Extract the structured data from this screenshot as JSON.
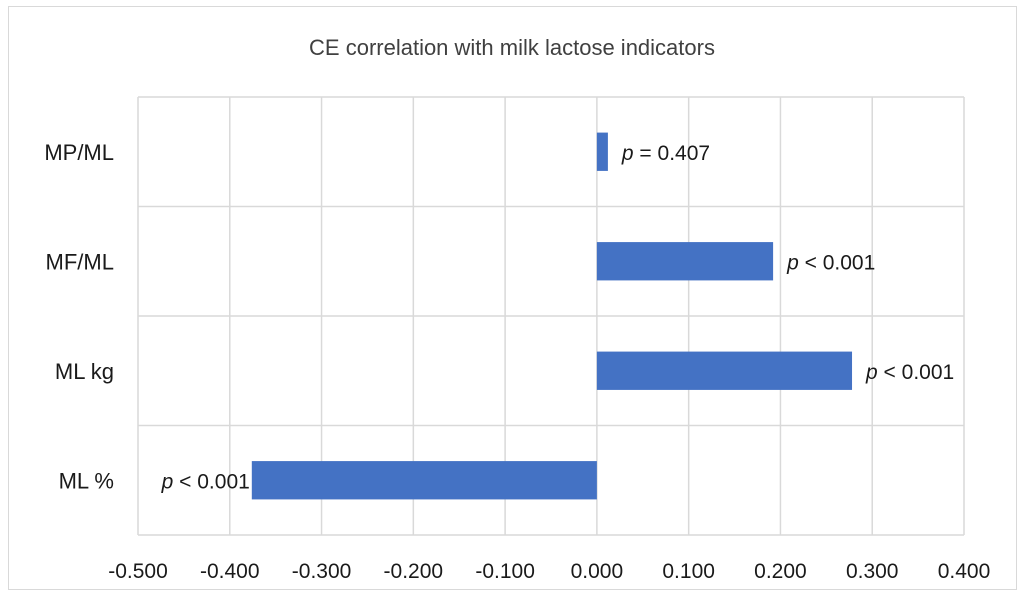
{
  "chart_data": {
    "type": "bar",
    "orientation": "horizontal",
    "title": "CE correlation with milk lactose indicators",
    "xlabel": "",
    "ylabel": "",
    "categories": [
      "MP/ML",
      "MF/ML",
      "ML kg",
      "ML %"
    ],
    "values": [
      0.012,
      0.192,
      0.278,
      -0.376
    ],
    "data_labels": [
      {
        "prefix": "p",
        "text": " = 0.407"
      },
      {
        "prefix": "p",
        "text": " < 0.001"
      },
      {
        "prefix": "p",
        "text": " < 0.001"
      },
      {
        "prefix": "p",
        "text": " < 0.001"
      }
    ],
    "xlim": [
      -0.5,
      0.4
    ],
    "xticks": [
      "-0.500",
      "-0.400",
      "-0.300",
      "-0.200",
      "-0.100",
      "0.000",
      "0.100",
      "0.200",
      "0.300",
      "0.400"
    ],
    "grid": true,
    "legend": "none",
    "bar_color": "#4472c4"
  }
}
